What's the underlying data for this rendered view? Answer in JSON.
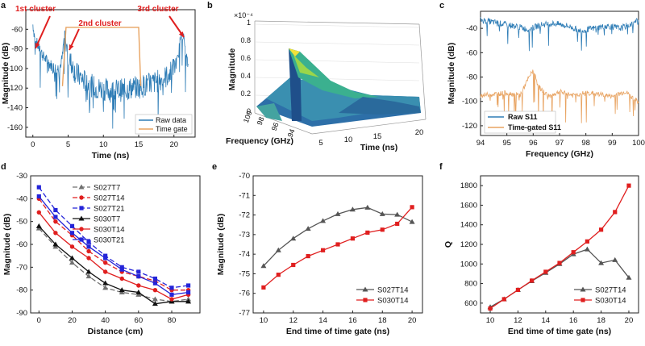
{
  "figure": {
    "panels": {
      "a": {
        "letter": "a",
        "type": "line",
        "xlabel": "Time (ns)",
        "ylabel": "Magnitude (dB)",
        "xlim": [
          -1,
          23
        ],
        "ylim": [
          -170,
          -40
        ],
        "xticks": [
          0,
          5,
          10,
          15,
          20
        ],
        "yticks": [
          -160,
          -140,
          -120,
          -100,
          -80,
          -60
        ],
        "annotations": [
          "1st cluster",
          "2nd cluster",
          "3rd cluster"
        ],
        "legend": [
          "Raw data",
          "Time gate"
        ],
        "colors": {
          "raw": "#2f7db6",
          "gate": "#e8a361",
          "annot": "#e01f1f"
        },
        "series": [
          {
            "name": "Raw data",
            "x": [
              0,
              0.2,
              0.6,
              1,
              1.5,
              2,
              2.5,
              3,
              3.5,
              3.9,
              4.2,
              4.5,
              5,
              6,
              7,
              8,
              9,
              10,
              11,
              12,
              13,
              14,
              15,
              16,
              17,
              18,
              19,
              20,
              20.6,
              21,
              21.4,
              22
            ],
            "y": [
              -55,
              -65,
              -75,
              -80,
              -88,
              -92,
              -96,
              -99,
              -100,
              -97,
              -88,
              -62,
              -88,
              -104,
              -111,
              -116,
              -120,
              -121,
              -123,
              -122,
              -122,
              -120,
              -119,
              -117,
              -115,
              -112,
              -108,
              -100,
              -90,
              -60,
              -70,
              -98
            ]
          },
          {
            "name": "Time gate",
            "x": [
              4.2,
              4.7,
              15,
              15.3
            ],
            "y": [
              -118,
              -58,
              -58,
              -118
            ]
          }
        ]
      },
      "b": {
        "letter": "b",
        "type": "surface3d",
        "xlabel": "Frequency (GHz)",
        "ylabel": "Time (ns)",
        "zlabel": "Magnitude",
        "zscale": "×10⁻⁴",
        "freq_ticks": [
          "94",
          "96",
          "98",
          "100"
        ],
        "time_ticks": [
          "5",
          "10",
          "15",
          "20"
        ],
        "z_ticks": [
          "0",
          "0.2",
          "0.4",
          "0.6",
          "0.8",
          "1"
        ],
        "peak_frequency_ghz": 96,
        "peak_time_ns": 5,
        "peak_magnitude": 0.7
      },
      "c": {
        "letter": "c",
        "type": "line",
        "xlabel": "Frequency (GHz)",
        "ylabel": "Magnitude (dB)",
        "xlim": [
          94,
          100
        ],
        "ylim": [
          -128,
          -26
        ],
        "xticks": [
          94,
          95,
          96,
          97,
          98,
          99,
          100
        ],
        "yticks": [
          -120,
          -100,
          -80,
          -60,
          -40
        ],
        "legend": [
          "Raw S11",
          "Time-gated S11"
        ],
        "colors": {
          "raw": "#2f7db6",
          "gated": "#e8a361"
        },
        "series": [
          {
            "name": "Raw S11",
            "x": [
              94,
              94.5,
              95,
              95.5,
              95.8,
              96.3,
              96.8,
              97.3,
              97.8,
              98.3,
              98.8,
              99.3,
              99.8,
              100
            ],
            "y": [
              -33,
              -35,
              -37,
              -39,
              -41,
              -37,
              -36,
              -38,
              -42,
              -40,
              -38,
              -40,
              -36,
              -33
            ]
          },
          {
            "name": "Time-gated S11",
            "x": [
              94,
              94.5,
              95,
              95.5,
              95.8,
              96.0,
              96.2,
              96.6,
              97.0,
              97.5,
              98.0,
              98.5,
              99.0,
              99.5,
              100
            ],
            "y": [
              -95,
              -94,
              -93,
              -95,
              -82,
              -74,
              -88,
              -96,
              -92,
              -95,
              -93,
              -94,
              -96,
              -92,
              -101
            ]
          }
        ]
      },
      "d": {
        "letter": "d",
        "type": "line",
        "xlabel": "Distance (cm)",
        "ylabel": "Magnitude (dB)",
        "xlim": [
          -5,
          97
        ],
        "ylim": [
          -90,
          -30
        ],
        "xticks": [
          0,
          20,
          40,
          60,
          80
        ],
        "yticks": [
          -90,
          -80,
          -70,
          -60,
          -50,
          -40,
          -30
        ],
        "x": [
          0,
          10,
          20,
          30,
          40,
          50,
          60,
          70,
          80,
          90
        ],
        "series": [
          {
            "name": "S027T7",
            "color": "#707070",
            "dash": "6,3",
            "marker": "tri",
            "values": [
              -53,
              -61,
              -68,
              -74,
              -79,
              -81,
              -82,
              -84,
              -85,
              -84
            ]
          },
          {
            "name": "S027T14",
            "color": "#e01f1f",
            "dash": "6,3",
            "marker": "dot",
            "values": [
              -40,
              -50,
              -56,
              -63,
              -68,
              -72,
              -74,
              -76,
              -80,
              -80
            ]
          },
          {
            "name": "S027T21",
            "color": "#2424d8",
            "dash": "6,3",
            "marker": "sq",
            "values": [
              -35,
              -45,
              -52,
              -59,
              -65,
              -70,
              -72,
              -75,
              -79,
              -78
            ]
          },
          {
            "name": "S030T7",
            "color": "#111111",
            "dash": "",
            "marker": "tri",
            "values": [
              -52,
              -60,
              -66,
              -72,
              -77,
              -80,
              -81,
              -86,
              -85,
              -85
            ]
          },
          {
            "name": "S030T14",
            "color": "#e01f1f",
            "dash": "",
            "marker": "dot",
            "values": [
              -46,
              -55,
              -61,
              -66,
              -72,
              -75,
              -78,
              -80,
              -84,
              -82
            ]
          },
          {
            "name": "S030T21",
            "color": "#2424d8",
            "dash": "",
            "marker": "sq",
            "values": [
              -39,
              -48,
              -55,
              -61,
              -66,
              -71,
              -74,
              -77,
              -82,
              -81
            ]
          }
        ]
      },
      "e": {
        "letter": "e",
        "type": "line",
        "xlabel": "End time of time gate (ns)",
        "ylabel": "Magnitude (dB)",
        "xlim": [
          9.3,
          20.7
        ],
        "ylim": [
          -77,
          -70
        ],
        "xticks": [
          10,
          12,
          14,
          16,
          18,
          20
        ],
        "yticks": [
          -77,
          -76,
          -75,
          -74,
          -73,
          -72,
          -71,
          -70
        ],
        "x": [
          10,
          11,
          12,
          13,
          14,
          15,
          16,
          17,
          18,
          19,
          20
        ],
        "series": [
          {
            "name": "S027T14",
            "color": "#555555",
            "marker": "tri",
            "values": [
              -74.6,
              -73.8,
              -73.2,
              -72.7,
              -72.3,
              -71.95,
              -71.72,
              -71.62,
              -71.95,
              -71.98,
              -72.35
            ]
          },
          {
            "name": "S030T14",
            "color": "#e01f1f",
            "marker": "sq",
            "values": [
              -75.7,
              -75.05,
              -74.55,
              -74.1,
              -73.8,
              -73.5,
              -73.2,
              -72.9,
              -72.75,
              -72.45,
              -71.6
            ]
          }
        ]
      },
      "f": {
        "letter": "f",
        "type": "line",
        "xlabel": "End time of time gate (ns)",
        "ylabel": "Q",
        "xlim": [
          9.3,
          20.7
        ],
        "ylim": [
          500,
          1900
        ],
        "xticks": [
          10,
          12,
          14,
          16,
          18,
          20
        ],
        "yticks": [
          600,
          800,
          1000,
          1200,
          1400,
          1600,
          1800
        ],
        "x": [
          10,
          11,
          12,
          13,
          14,
          15,
          16,
          17,
          18,
          19,
          20
        ],
        "series": [
          {
            "name": "S027T14",
            "color": "#555555",
            "marker": "tri",
            "values": [
              560,
              640,
              735,
              825,
              910,
              1000,
              1100,
              1150,
              1010,
              1040,
              860
            ]
          },
          {
            "name": "S030T14",
            "color": "#e01f1f",
            "marker": "sq",
            "values": [
              545,
              640,
              735,
              830,
              920,
              1010,
              1120,
              1230,
              1350,
              1530,
              1800
            ]
          }
        ]
      }
    }
  }
}
